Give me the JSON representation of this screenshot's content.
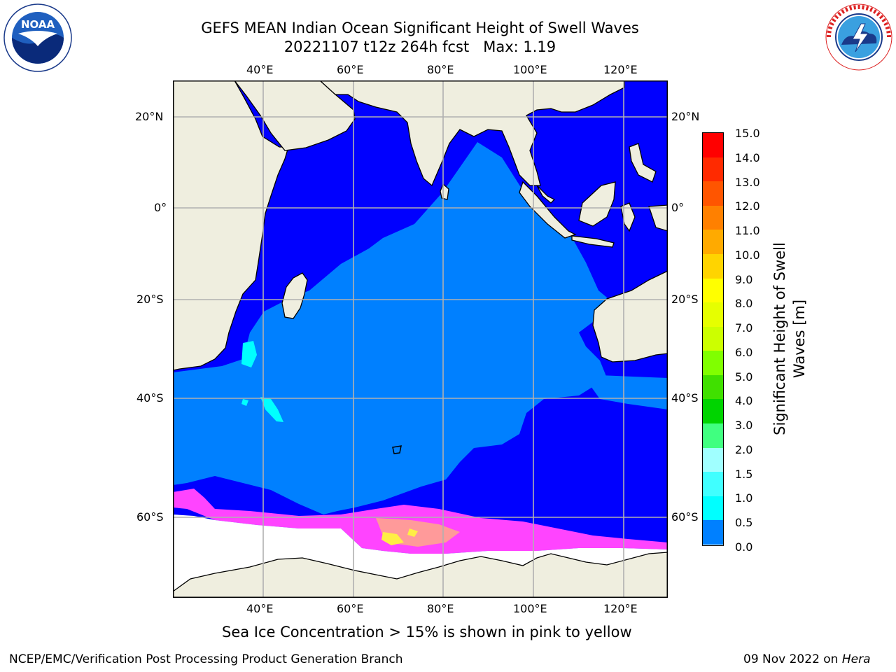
{
  "title": {
    "line1": "GEFS MEAN Indian Ocean Significant Height of Swell Waves",
    "line2": "20221107 t12z 264h fcst   Max: 1.19"
  },
  "logos": {
    "noaa_text": "NOAA",
    "noaa_ring": "NATIONAL OCEANIC AND ATMOSPHERIC ADMINISTRATION · U.S. DEPARTMENT OF COMMERCE",
    "nws_ring": "NATIONAL WEATHER SERVICE"
  },
  "map": {
    "lon_ticks": [
      "40°E",
      "60°E",
      "80°E",
      "100°E",
      "120°E"
    ],
    "lat_ticks": [
      "20°N",
      "0°",
      "20°S",
      "40°S",
      "60°S"
    ],
    "colors": {
      "land": "#efeedf",
      "swell_0_05": "#0000ff",
      "swell_05_1": "#0080ff",
      "swell_1_15": "#00ffff",
      "sea_ice_low": "#ff44ff",
      "sea_ice_mid": "#ff9a9a",
      "sea_ice_high": "#ffee44",
      "ice_shelf": "#ffffff",
      "grid": "#b0b0b0"
    }
  },
  "colorbar": {
    "title_line1": "Significant Height of Swell",
    "title_line2": "Waves [m]",
    "labels": [
      "15.0",
      "14.0",
      "13.0",
      "12.0",
      "11.0",
      "10.0",
      "9.0",
      "8.0",
      "7.0",
      "6.0",
      "5.0",
      "4.0",
      "3.0",
      "2.0",
      "1.5",
      "1.0",
      "0.5",
      "0.0"
    ],
    "colors": [
      "#ff0000",
      "#ff2a00",
      "#ff5500",
      "#ff8000",
      "#ffaa00",
      "#ffd400",
      "#ffff00",
      "#e6ff00",
      "#ccff00",
      "#80ff00",
      "#40e000",
      "#00d400",
      "#40ff80",
      "#a0ffff",
      "#40ffff",
      "#00ffff",
      "#0080ff",
      "#0000ff"
    ]
  },
  "caption": "Sea Ice Concentration > 15% is shown in pink to yellow",
  "footer": {
    "left": "NCEP/EMC/Verification Post Processing Product Generation Branch",
    "right_date": "09 Nov 2022 on ",
    "right_host": "Hera"
  }
}
